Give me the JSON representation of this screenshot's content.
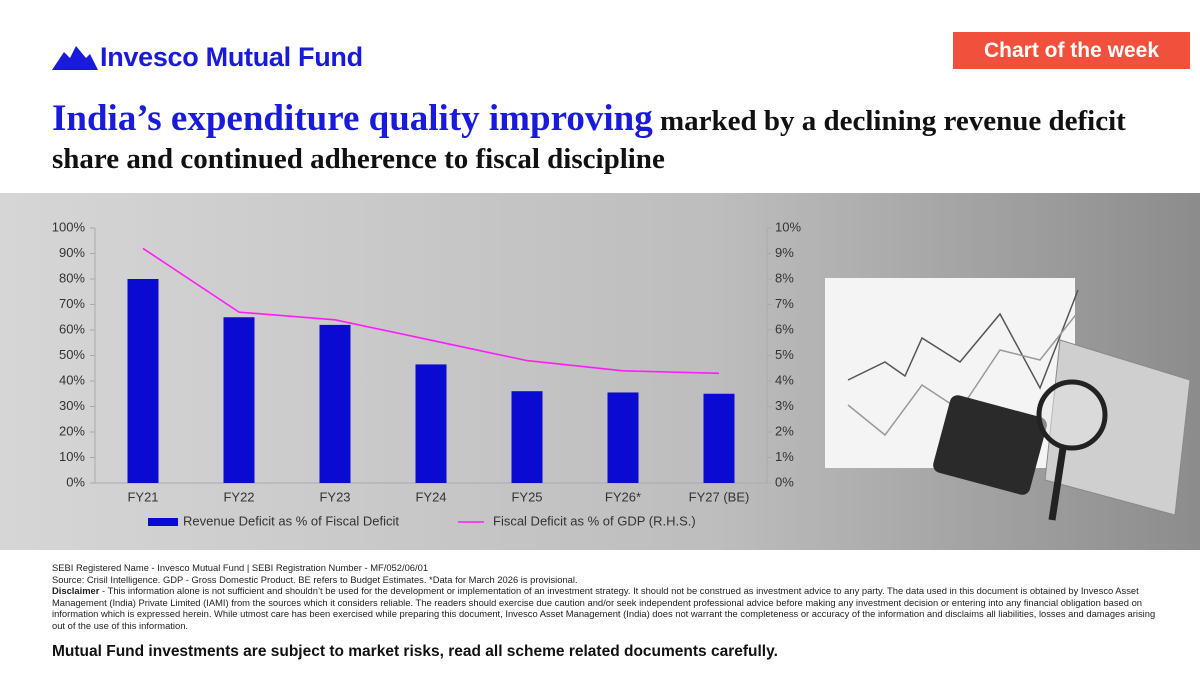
{
  "header": {
    "brand": "Invesco Mutual Fund",
    "badge": "Chart of the week",
    "title_highlight": "India’s expenditure quality improving",
    "title_rest": "marked by a declining revenue deficit share and continued adherence to fiscal discipline"
  },
  "chart_data": {
    "type": "bar",
    "categories": [
      "FY21",
      "FY22",
      "FY23",
      "FY24",
      "FY25",
      "FY26*",
      "FY27 (BE)"
    ],
    "series": [
      {
        "name": "Revenue Deficit as % of Fiscal Deficit",
        "color": "#0a0ad2",
        "values": [
          80,
          65,
          62,
          46.5,
          36,
          35.5,
          35
        ]
      },
      {
        "name": "Fiscal Deficit as % of GDP (R.H.S.)",
        "color": "#ff1aff",
        "type": "line",
        "axis": "y2",
        "values": [
          9.2,
          6.7,
          6.4,
          5.6,
          4.8,
          4.4,
          4.3
        ]
      }
    ],
    "ylim": [
      0,
      100
    ],
    "yticks": [
      {
        "value": 0,
        "label": "0%"
      },
      {
        "value": 10,
        "label": "10%"
      },
      {
        "value": 20,
        "label": "20%"
      },
      {
        "value": 30,
        "label": "30%"
      },
      {
        "value": 40,
        "label": "40%"
      },
      {
        "value": 50,
        "label": "50%"
      },
      {
        "value": 60,
        "label": "60%"
      },
      {
        "value": 70,
        "label": "70%"
      },
      {
        "value": 80,
        "label": "80%"
      },
      {
        "value": 90,
        "label": "90%"
      },
      {
        "value": 100,
        "label": "100%"
      }
    ],
    "y2lim": [
      0,
      10
    ],
    "y2ticks": [
      {
        "value": 0,
        "label": "0%"
      },
      {
        "value": 1,
        "label": "1%"
      },
      {
        "value": 2,
        "label": "2%"
      },
      {
        "value": 3,
        "label": "3%"
      },
      {
        "value": 4,
        "label": "4%"
      },
      {
        "value": 5,
        "label": "5%"
      },
      {
        "value": 6,
        "label": "6%"
      },
      {
        "value": 7,
        "label": "7%"
      },
      {
        "value": 8,
        "label": "8%"
      },
      {
        "value": 9,
        "label": "9%"
      },
      {
        "value": 10,
        "label": "10%"
      }
    ],
    "legend": "bottom"
  },
  "footer": {
    "registration": "SEBI Registered Name - Invesco Mutual Fund | SEBI Registration Number - MF/052/06/01",
    "source": "Source: Crisil Intelligence. GDP - Gross Domestic Product. BE refers to Budget Estimates. *Data for March 2026 is provisional.",
    "disclaimer_label": "Disclaimer",
    "disclaimer": "- This information alone is not sufficient and shouldn’t be used for the development or implementation of an investment strategy. It should not be construed as investment advice to any party. The data used in this document is obtained by Invesco Asset Management (India) Private Limited (IAMI) from the sources which it considers reliable. The readers should exercise due caution and/or seek independent professional advice before making any investment decision or entering into any financial obligation based on information which is expressed herein. While utmost care has been exercised while preparing this document, Invesco Asset Management (India) does not warrant the completeness or accuracy of the information and disclaims all liabilities, losses and damages arising out of the use of this information.",
    "risk": "Mutual Fund investments are subject to market risks, read all scheme related documents carefully."
  }
}
